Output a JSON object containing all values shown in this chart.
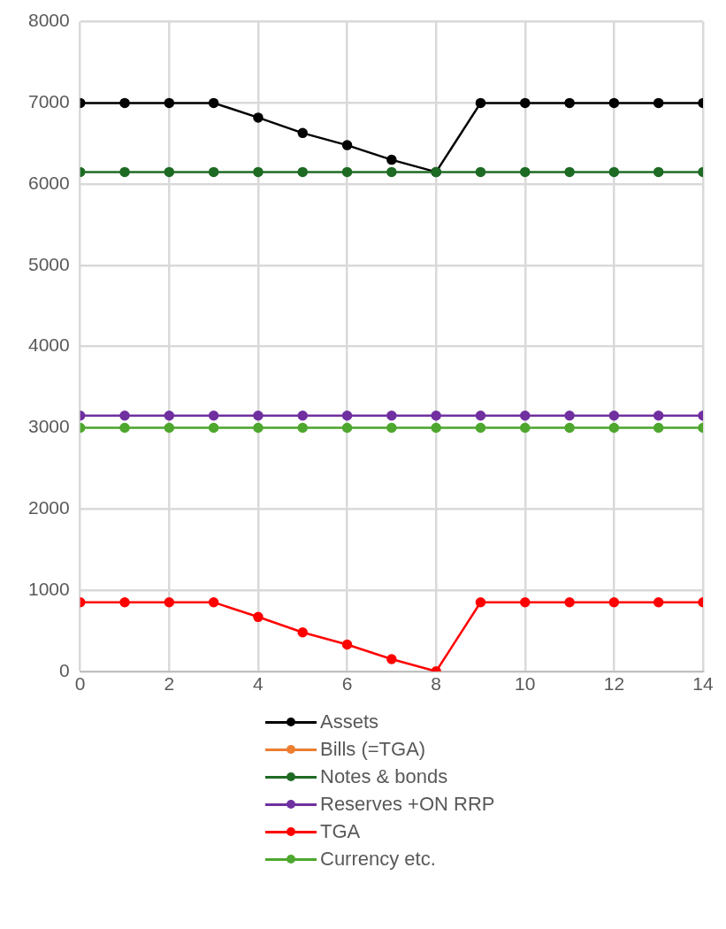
{
  "chart_data": {
    "type": "line",
    "x": [
      0,
      1,
      2,
      3,
      4,
      5,
      6,
      7,
      8,
      9,
      10,
      11,
      12,
      13,
      14
    ],
    "series": [
      {
        "name": "Assets",
        "color": "#000000",
        "values": [
          7000,
          7000,
          7000,
          7000,
          6820,
          6630,
          6480,
          6300,
          6150,
          7000,
          7000,
          7000,
          7000,
          7000,
          7000
        ]
      },
      {
        "name": "Bills (=TGA)",
        "color": "#ed7d31",
        "values": [
          null,
          null,
          null,
          null,
          null,
          null,
          null,
          null,
          null,
          null,
          null,
          null,
          null,
          null,
          null
        ]
      },
      {
        "name": "Notes & bonds",
        "color": "#1e6b24",
        "values": [
          6150,
          6150,
          6150,
          6150,
          6150,
          6150,
          6150,
          6150,
          6150,
          6150,
          6150,
          6150,
          6150,
          6150,
          6150
        ]
      },
      {
        "name": "Reserves +ON RRP",
        "color": "#7030a0",
        "values": [
          3150,
          3150,
          3150,
          3150,
          3150,
          3150,
          3150,
          3150,
          3150,
          3150,
          3150,
          3150,
          3150,
          3150,
          3150
        ]
      },
      {
        "name": "TGA",
        "color": "#ff0000",
        "values": [
          850,
          850,
          850,
          850,
          670,
          480,
          330,
          150,
          0,
          850,
          850,
          850,
          850,
          850,
          850
        ]
      },
      {
        "name": "Currency etc.",
        "color": "#4ea72e",
        "values": [
          3000,
          3000,
          3000,
          3000,
          3000,
          3000,
          3000,
          3000,
          3000,
          3000,
          3000,
          3000,
          3000,
          3000,
          3000
        ]
      }
    ],
    "xlim": [
      0,
      14
    ],
    "xticks": [
      0,
      2,
      4,
      6,
      8,
      10,
      12,
      14
    ],
    "ylim": [
      0,
      8000
    ],
    "yticks": [
      0,
      1000,
      2000,
      3000,
      4000,
      5000,
      6000,
      7000,
      8000
    ],
    "grid": true,
    "legend": "bottom",
    "marker": "circle",
    "line_style": "solid"
  }
}
